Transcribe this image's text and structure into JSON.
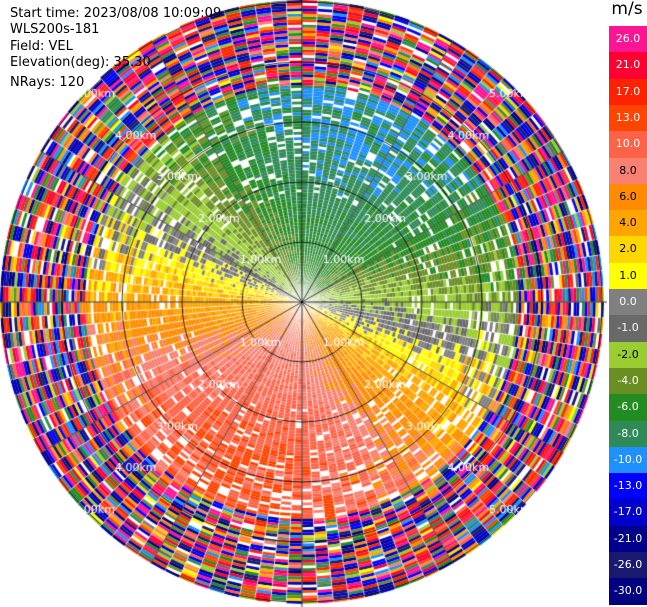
{
  "header": {
    "start_time": "Start time: 2023/08/08 10:09:09",
    "instrument": "WLS200s-181",
    "field": "Field: VEL",
    "elevation": "Elevation(deg): 35.30",
    "nrays": "NRays: 120"
  },
  "chart_data": {
    "type": "heatmap",
    "projection": "polar (PPI radar scan)",
    "field": "VEL",
    "units": "m/s",
    "nrays": 120,
    "elevation_deg": 35.3,
    "range_rings_km": [
      "1.00km",
      "2.00km",
      "3.00km",
      "4.00km",
      "5.00km"
    ],
    "colorbar": {
      "ticks": [
        "26.0",
        "21.0",
        "17.0",
        "13.0",
        "10.0",
        "8.0",
        "6.0",
        "4.0",
        "2.0",
        "1.0",
        "0.0",
        "-1.0",
        "-2.0",
        "-4.0",
        "-6.0",
        "-8.0",
        "-10.0",
        "-13.0",
        "-17.0",
        "-21.0",
        "-26.0",
        "-30.0"
      ],
      "colors": [
        "#ff1493",
        "#ff0033",
        "#ff2200",
        "#ff4500",
        "#ff6347",
        "#fa8072",
        "#ff8c00",
        "#ffa500",
        "#ffd700",
        "#ffff00",
        "#808080",
        "#696969",
        "#9acd32",
        "#6b8e23",
        "#228b22",
        "#2e8b57",
        "#1e90ff",
        "#0000ff",
        "#0000cd",
        "#00008b",
        "#191970",
        "#000080"
      ]
    },
    "regions_description": {
      "center_north": "negative velocities (-6 to -10 m/s, blue/green)",
      "center_south": "positive velocities (4 to 13 m/s, orange/red)",
      "outer_ranges": "noisy values spanning full scale"
    }
  }
}
